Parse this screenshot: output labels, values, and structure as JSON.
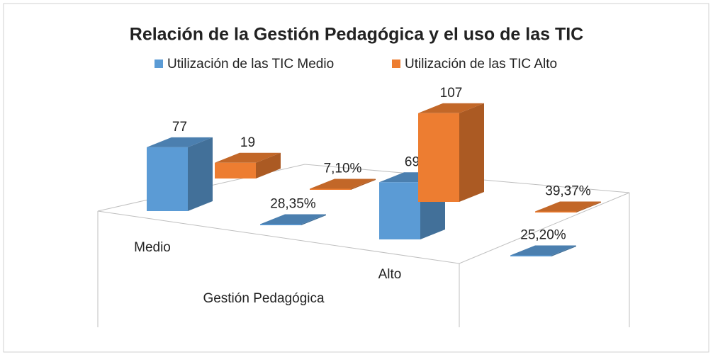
{
  "chart_data": {
    "type": "bar3d",
    "title": "Relación de la Gestión Pedagógica y el uso de las TIC",
    "x_label": "Gestión Pedagógica",
    "categories": [
      "Medio",
      null,
      "Alto",
      null
    ],
    "legend": "top",
    "series": [
      {
        "name": "Utilización de las TIC Medio",
        "color": "#5b9bd5",
        "values": [
          77,
          0.2835,
          69,
          0.252
        ],
        "value_labels": [
          "77",
          "28,35%",
          "69",
          "25,20%"
        ]
      },
      {
        "name": "Utilización de las TIC Alto",
        "color": "#ed7d31",
        "values": [
          19,
          0.071,
          107,
          0.3937
        ],
        "value_labels": [
          "19",
          "7,10%",
          "107",
          "39,37%"
        ]
      }
    ]
  }
}
